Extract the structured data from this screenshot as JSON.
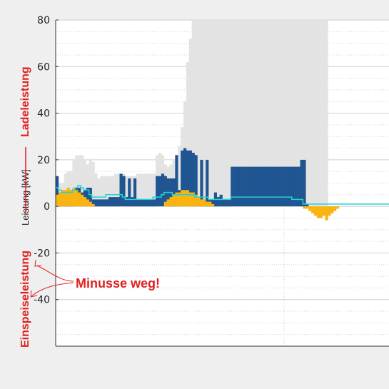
{
  "chart_data": {
    "type": "area",
    "title": "",
    "xlabel": "",
    "ylabel": "Leistung [kW]",
    "ylim": [
      -60,
      80
    ],
    "yticks": [
      80,
      60,
      40,
      20,
      0,
      -20,
      -40
    ],
    "grid": true,
    "x": [
      0,
      1,
      2,
      3,
      4,
      5,
      6,
      7,
      8,
      9,
      10,
      11,
      12,
      13,
      14,
      15,
      16,
      17,
      18,
      19,
      20,
      21,
      22,
      23,
      24,
      25,
      26,
      27,
      28,
      29,
      30,
      31,
      32,
      33,
      34,
      35,
      36,
      37,
      38,
      39,
      40,
      41,
      42,
      43,
      44,
      45,
      46,
      47,
      48,
      49,
      50,
      51,
      52,
      53,
      54,
      55,
      56,
      57,
      58,
      59,
      60,
      61,
      62,
      63,
      64,
      65,
      66,
      67,
      68,
      69,
      70,
      71,
      72,
      73,
      74,
      75,
      76,
      77,
      78,
      79,
      80,
      81,
      82,
      83,
      84,
      85,
      86,
      87,
      88,
      89,
      90,
      91,
      92,
      93,
      94,
      95,
      96,
      97,
      98,
      99,
      100,
      101,
      102,
      103,
      104,
      105,
      106,
      107,
      108,
      109,
      110,
      111,
      112,
      113,
      114,
      115,
      116,
      117,
      118,
      119
    ],
    "series": [
      {
        "role": "background",
        "color": "#e3e3e3",
        "values": [
          10,
          10,
          10,
          14,
          15,
          15,
          20,
          22,
          22,
          22,
          20,
          18,
          20,
          19,
          14,
          12,
          13,
          13,
          13,
          13,
          13,
          14,
          14,
          14,
          14,
          13,
          13,
          13,
          13,
          14,
          14,
          14,
          14,
          14,
          14,
          14,
          22,
          23,
          22,
          18,
          17,
          18,
          20,
          22,
          26,
          34,
          45,
          62,
          72,
          80,
          80,
          80,
          80,
          80,
          80,
          80,
          80,
          80,
          80,
          80,
          80,
          80,
          80,
          80,
          80,
          80,
          80,
          80,
          80,
          80,
          80,
          80,
          80,
          80,
          80,
          80,
          80,
          80,
          80,
          80,
          80,
          80,
          80,
          80,
          80,
          80,
          80,
          80,
          80,
          80,
          80,
          80,
          80,
          80,
          80,
          80,
          80,
          80,
          0,
          0,
          0,
          0,
          0,
          0,
          0,
          0,
          0,
          0,
          0,
          0,
          0,
          0,
          0,
          0,
          0,
          0,
          0,
          0,
          0,
          0
        ]
      },
      {
        "role": "main",
        "color": "#1f5591",
        "values": [
          13,
          6,
          4,
          6,
          7,
          7,
          7,
          8,
          8,
          6,
          7,
          8,
          8,
          3,
          3,
          3,
          3,
          3,
          3,
          4,
          4,
          4,
          4,
          14,
          13,
          4,
          12,
          4,
          12,
          3,
          3,
          3,
          3,
          3,
          3,
          3,
          13,
          13,
          14,
          13,
          12,
          12,
          12,
          22,
          7,
          24,
          25,
          24,
          24,
          23,
          22,
          3,
          20,
          3,
          20,
          3,
          3,
          6,
          4,
          5,
          3,
          3,
          3,
          17,
          17,
          17,
          17,
          17,
          17,
          17,
          17,
          17,
          17,
          17,
          17,
          17,
          17,
          17,
          17,
          17,
          17,
          17,
          17,
          17,
          17,
          17,
          17,
          17,
          20,
          20,
          1,
          0,
          0,
          0,
          0,
          0,
          0,
          0,
          0,
          0,
          0,
          0,
          0,
          0,
          0,
          0,
          0,
          0,
          0,
          0,
          0,
          0,
          0,
          0,
          0,
          0,
          0,
          0,
          0,
          0
        ]
      },
      {
        "role": "secondary",
        "color": "#f9b412",
        "values": [
          5,
          6,
          7,
          7,
          8,
          7,
          8,
          7,
          6,
          5,
          4,
          3,
          2,
          1,
          0,
          0,
          0,
          0,
          0,
          0,
          0,
          0,
          0,
          0,
          0,
          0,
          0,
          0,
          0,
          0,
          0,
          0,
          0,
          0,
          0,
          0,
          0,
          0,
          0,
          2,
          3,
          4,
          5,
          6,
          6,
          7,
          7,
          7,
          6,
          6,
          5,
          4,
          3,
          3,
          2,
          2,
          1,
          0,
          0,
          0,
          0,
          0,
          0,
          0,
          0,
          0,
          0,
          0,
          0,
          0,
          0,
          0,
          0,
          0,
          0,
          0,
          0,
          0,
          0,
          0,
          0,
          0,
          0,
          0,
          0,
          0,
          0,
          0,
          0,
          -1,
          -1,
          -2,
          -3,
          -4,
          -5,
          -5,
          -4,
          -6,
          -4,
          -3,
          -2,
          -1,
          0,
          0,
          0,
          0,
          0,
          0,
          0,
          0,
          0,
          0,
          0,
          0,
          0,
          0,
          0,
          0,
          0,
          0
        ]
      },
      {
        "role": "line",
        "color": "#22d3d3",
        "values": [
          8,
          7,
          6,
          6,
          6,
          6,
          7,
          8,
          9,
          8,
          7,
          7,
          5,
          4,
          4,
          4,
          4,
          4,
          5,
          5,
          5,
          5,
          5,
          5,
          4,
          3,
          3,
          3,
          3,
          3,
          3,
          3,
          3,
          3,
          3,
          4,
          4,
          4,
          5,
          6,
          6,
          6,
          5,
          5,
          5,
          5,
          5,
          5,
          5,
          5,
          4,
          4,
          4,
          4,
          4,
          3,
          3,
          3,
          3,
          3,
          3,
          3,
          3,
          4,
          4,
          4,
          4,
          4,
          4,
          4,
          4,
          4,
          4,
          4,
          4,
          4,
          4,
          4,
          4,
          4,
          4,
          4,
          4,
          4,
          4,
          3,
          3,
          3,
          3,
          1,
          1,
          1,
          1,
          1,
          1,
          1,
          1,
          1,
          1,
          1,
          1,
          1,
          1,
          1,
          1,
          1,
          1,
          1,
          1,
          1,
          1,
          1,
          1,
          1,
          1,
          1,
          1,
          1,
          1,
          1
        ]
      }
    ],
    "annotations": {
      "ladeleistung": "Ladeleistung",
      "einspeiseleistung": "Einspeiseleistung",
      "minusse": "Minusse weg!"
    }
  }
}
